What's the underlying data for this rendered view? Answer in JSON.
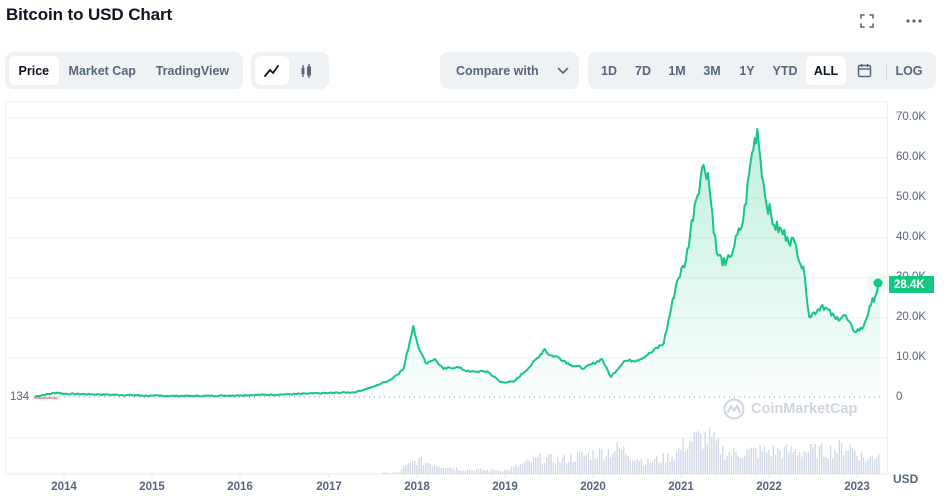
{
  "header": {
    "title": "Bitcoin to USD Chart",
    "icons": [
      "fullscreen-icon",
      "more-options-icon"
    ]
  },
  "toolbar": {
    "view_tabs": [
      {
        "label": "Price",
        "active": true
      },
      {
        "label": "Market Cap",
        "active": false
      },
      {
        "label": "TradingView",
        "active": false
      }
    ],
    "chart_type": [
      {
        "icon": "line-chart-icon",
        "active": true
      },
      {
        "icon": "candlestick-icon",
        "active": false
      }
    ],
    "compare": {
      "label": "Compare with",
      "icon": "chevron-down-icon"
    },
    "ranges": [
      {
        "label": "1D",
        "active": false
      },
      {
        "label": "7D",
        "active": false
      },
      {
        "label": "1M",
        "active": false
      },
      {
        "label": "3M",
        "active": false
      },
      {
        "label": "1Y",
        "active": false
      },
      {
        "label": "YTD",
        "active": false
      },
      {
        "label": "ALL",
        "active": true
      }
    ],
    "calendar_icon": "calendar-icon",
    "log_label": "LOG"
  },
  "chart": {
    "start_label": "134",
    "current_price_label": "28.4K",
    "currency_label": "USD",
    "watermark": "CoinMarketCap",
    "colors": {
      "line": "#16c784",
      "fill": "#16c784",
      "volume": "#cfd6e4",
      "grid": "#eff2f5",
      "axis_text": "#58667e"
    }
  },
  "chart_data": {
    "type": "area",
    "title": "Bitcoin to USD Chart",
    "xlabel": "",
    "ylabel": "USD",
    "ylim": [
      0,
      70000
    ],
    "yticks": [
      "0",
      "10.0K",
      "20.0K",
      "30.0K",
      "40.0K",
      "50.0K",
      "60.0K",
      "70.0K"
    ],
    "xticks": [
      "2014",
      "2015",
      "2016",
      "2017",
      "2018",
      "2019",
      "2020",
      "2021",
      "2022",
      "2023"
    ],
    "grid": true,
    "legend": null,
    "annotations": [
      "134 (start price)",
      "28.4K (current price)"
    ],
    "series": [
      {
        "name": "Price (USD)",
        "x": [
          2013.67,
          2013.92,
          2014.0,
          2014.5,
          2015.0,
          2015.5,
          2016.0,
          2016.5,
          2017.0,
          2017.3,
          2017.5,
          2017.7,
          2017.85,
          2017.96,
          2018.0,
          2018.05,
          2018.1,
          2018.2,
          2018.3,
          2018.45,
          2018.6,
          2018.8,
          2018.95,
          2019.1,
          2019.3,
          2019.45,
          2019.5,
          2019.6,
          2019.75,
          2019.9,
          2020.1,
          2020.2,
          2020.35,
          2020.5,
          2020.65,
          2020.8,
          2020.95,
          2021.05,
          2021.15,
          2021.25,
          2021.3,
          2021.4,
          2021.5,
          2021.55,
          2021.7,
          2021.8,
          2021.86,
          2021.95,
          2022.05,
          2022.2,
          2022.3,
          2022.4,
          2022.45,
          2022.6,
          2022.75,
          2022.85,
          2022.95,
          2023.05,
          2023.15,
          2023.25
        ],
        "values": [
          134,
          1100,
          800,
          600,
          300,
          250,
          430,
          650,
          1000,
          1200,
          2500,
          4300,
          7000,
          17800,
          14000,
          11000,
          8500,
          9500,
          7000,
          7500,
          6300,
          6400,
          3700,
          3800,
          8000,
          12000,
          10500,
          10000,
          8000,
          7200,
          9500,
          5000,
          9000,
          9200,
          11000,
          13500,
          29000,
          34000,
          48000,
          58000,
          56000,
          36000,
          33000,
          35000,
          44000,
          61000,
          67000,
          50000,
          43000,
          40000,
          38000,
          30000,
          20000,
          23000,
          19500,
          20500,
          16500,
          17000,
          23000,
          28400
        ]
      }
    ],
    "volume_series": {
      "name": "Volume",
      "note": "relative bar heights, unlabeled axis",
      "x": [
        2017.8,
        2018.0,
        2018.5,
        2019.0,
        2019.4,
        2019.6,
        2020.0,
        2020.3,
        2020.6,
        2020.9,
        2021.1,
        2021.3,
        2021.5,
        2021.9,
        2022.3,
        2022.6,
        2022.9,
        2023.1,
        2023.25
      ],
      "values": [
        0.1,
        0.3,
        0.1,
        0.08,
        0.35,
        0.3,
        0.45,
        0.55,
        0.25,
        0.4,
        0.75,
        0.8,
        0.45,
        0.5,
        0.5,
        0.5,
        0.6,
        0.3,
        0.5
      ]
    }
  }
}
